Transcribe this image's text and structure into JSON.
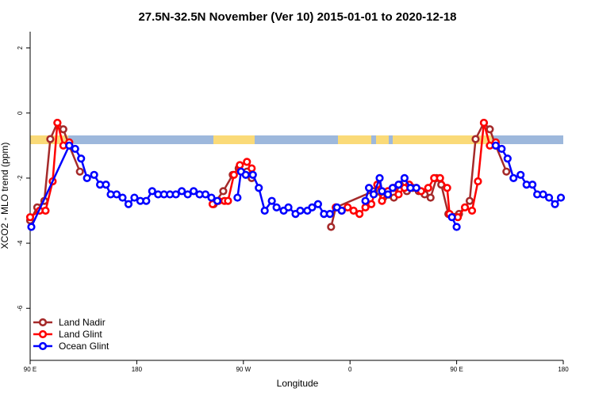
{
  "chart_data": {
    "type": "line",
    "title": "27.5N-32.5N November (Ver 10)   2015-01-01 to 2020-12-18",
    "x_label": "Longitude",
    "y_label": "XCO2 - MLO trend (ppm)",
    "xlim": [
      90,
      540
    ],
    "xticks": [
      {
        "value": 90,
        "label": "90 E"
      },
      180,
      {
        "value": 270,
        "label": "90 W"
      },
      {
        "value": 360,
        "label": "0"
      },
      {
        "value": 450,
        "label": "90 E"
      },
      {
        "value": 540,
        "label": "180"
      }
    ],
    "ylim": [
      -7.6,
      2.5
    ],
    "yticks": [
      2,
      0,
      -2,
      -4,
      -6
    ],
    "legend": "lower left",
    "series": [
      {
        "name": "Land Nadir",
        "color": "#a52a2a",
        "x": [
          90,
          96,
          102,
          107,
          113,
          118,
          123,
          132,
          null,
          245,
          253,
          261,
          266,
          273,
          277,
          null,
          344,
          348,
          380,
          388,
          397,
          402,
          408,
          413,
          418,
          423,
          428,
          433,
          437,
          443,
          452,
          461,
          466,
          473,
          478,
          483,
          492
        ],
        "values": [
          -3.3,
          -2.9,
          -2.7,
          -0.8,
          -0.3,
          -0.5,
          -1.0,
          -1.8,
          null,
          -2.8,
          -2.4,
          -1.9,
          -1.7,
          -1.8,
          -2.0,
          null,
          -3.5,
          -2.9,
          -2.4,
          -2.6,
          -2.6,
          -2.2,
          -2.4,
          -2.3,
          -2.4,
          -2.5,
          -2.6,
          -2.0,
          -2.2,
          -3.1,
          -3.1,
          -2.7,
          -0.8,
          -0.3,
          -0.5,
          -1.0,
          -1.8
        ]
      },
      {
        "name": "Land Glint",
        "color": "#ff0000",
        "x": [
          90,
          98,
          103,
          109,
          113,
          118,
          123,
          null,
          244,
          249,
          254,
          257,
          262,
          267,
          273,
          277,
          null,
          348,
          353,
          358,
          363,
          368,
          373,
          378,
          383,
          387,
          392,
          397,
          401,
          406,
          410,
          416,
          420,
          426,
          431,
          436,
          442,
          444,
          451,
          457,
          463,
          468,
          473,
          478,
          483
        ],
        "values": [
          -3.2,
          -3.0,
          -3.0,
          -2.1,
          -0.3,
          -1.0,
          -0.9,
          null,
          -2.8,
          -2.7,
          -2.7,
          -2.7,
          -1.9,
          -1.6,
          -1.5,
          -1.7,
          null,
          -2.9,
          -3.0,
          -2.9,
          -3.0,
          -3.1,
          -2.9,
          -2.8,
          -2.2,
          -2.7,
          -2.4,
          -2.3,
          -2.5,
          -2.3,
          -2.2,
          -2.3,
          -2.4,
          -2.3,
          -2.0,
          -2.0,
          -2.3,
          -3.1,
          -3.2,
          -2.9,
          -3.0,
          -2.1,
          -0.3,
          -1.0,
          -0.9
        ]
      },
      {
        "name": "Ocean Glint",
        "color": "#0000ff",
        "x": [
          91,
          123,
          128,
          133,
          138,
          144,
          149,
          154,
          158,
          163,
          168,
          173,
          178,
          183,
          188,
          193,
          198,
          203,
          208,
          213,
          218,
          223,
          228,
          233,
          238,
          243,
          248,
          null,
          265,
          268,
          272,
          278,
          283,
          288,
          294,
          298,
          304,
          308,
          314,
          318,
          324,
          328,
          333,
          338,
          343,
          349,
          353,
          null,
          373,
          376,
          380,
          385,
          387,
          392,
          396,
          401,
          406,
          411,
          416,
          null,
          446,
          450,
          null,
          483,
          488,
          493,
          498,
          504,
          509,
          514,
          518,
          523,
          528,
          533,
          538
        ],
        "values": [
          -3.5,
          -1.0,
          -1.1,
          -1.4,
          -2.0,
          -1.9,
          -2.2,
          -2.2,
          -2.5,
          -2.5,
          -2.6,
          -2.8,
          -2.6,
          -2.7,
          -2.7,
          -2.4,
          -2.5,
          -2.5,
          -2.5,
          -2.5,
          -2.4,
          -2.5,
          -2.4,
          -2.5,
          -2.5,
          -2.6,
          -2.7,
          null,
          -2.6,
          -1.8,
          -1.9,
          -1.9,
          -2.3,
          -3.0,
          -2.7,
          -2.9,
          -3.0,
          -2.9,
          -3.1,
          -3.0,
          -3.0,
          -2.9,
          -2.8,
          -3.1,
          -3.1,
          -2.9,
          -3.0,
          null,
          -2.7,
          -2.3,
          -2.5,
          -2.0,
          -2.4,
          -2.5,
          -2.3,
          -2.2,
          -2.0,
          -2.3,
          -2.3,
          null,
          -3.2,
          -3.5,
          null,
          -1.0,
          -1.1,
          -1.4,
          -2.0,
          -1.9,
          -2.2,
          -2.2,
          -2.5,
          -2.5,
          -2.6,
          -2.8,
          -2.6
        ]
      }
    ]
  }
}
